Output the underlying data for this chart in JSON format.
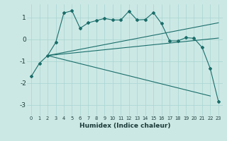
{
  "xlabel": "Humidex (Indice chaleur)",
  "background_color": "#cce8e5",
  "grid_color": "#a8d4d0",
  "line_color": "#1a6e6a",
  "xlim": [
    -0.5,
    23.5
  ],
  "ylim": [
    -3.5,
    1.6
  ],
  "x_ticks": [
    0,
    1,
    2,
    3,
    4,
    5,
    6,
    7,
    8,
    9,
    10,
    11,
    12,
    13,
    14,
    15,
    16,
    17,
    18,
    19,
    20,
    21,
    22,
    23
  ],
  "y_ticks": [
    -3,
    -2,
    -1,
    0,
    1
  ],
  "line1_x": [
    0,
    1,
    2,
    3,
    4,
    5,
    6,
    7,
    8,
    9,
    10,
    11,
    12,
    13,
    14,
    15,
    16,
    17,
    18,
    19,
    20,
    21,
    22,
    23
  ],
  "line1_y": [
    -1.7,
    -1.1,
    -0.75,
    -0.15,
    1.2,
    1.3,
    0.5,
    0.75,
    0.85,
    0.95,
    0.88,
    0.88,
    1.28,
    0.88,
    0.9,
    1.22,
    0.72,
    -0.08,
    -0.08,
    0.07,
    0.04,
    -0.38,
    -1.35,
    -2.85
  ],
  "line2_x": [
    2,
    23
  ],
  "line2_y": [
    -0.75,
    0.05
  ],
  "line3_x": [
    2,
    23
  ],
  "line3_y": [
    -0.75,
    0.75
  ],
  "line4_x": [
    2,
    22
  ],
  "line4_y": [
    -0.75,
    -2.6
  ]
}
